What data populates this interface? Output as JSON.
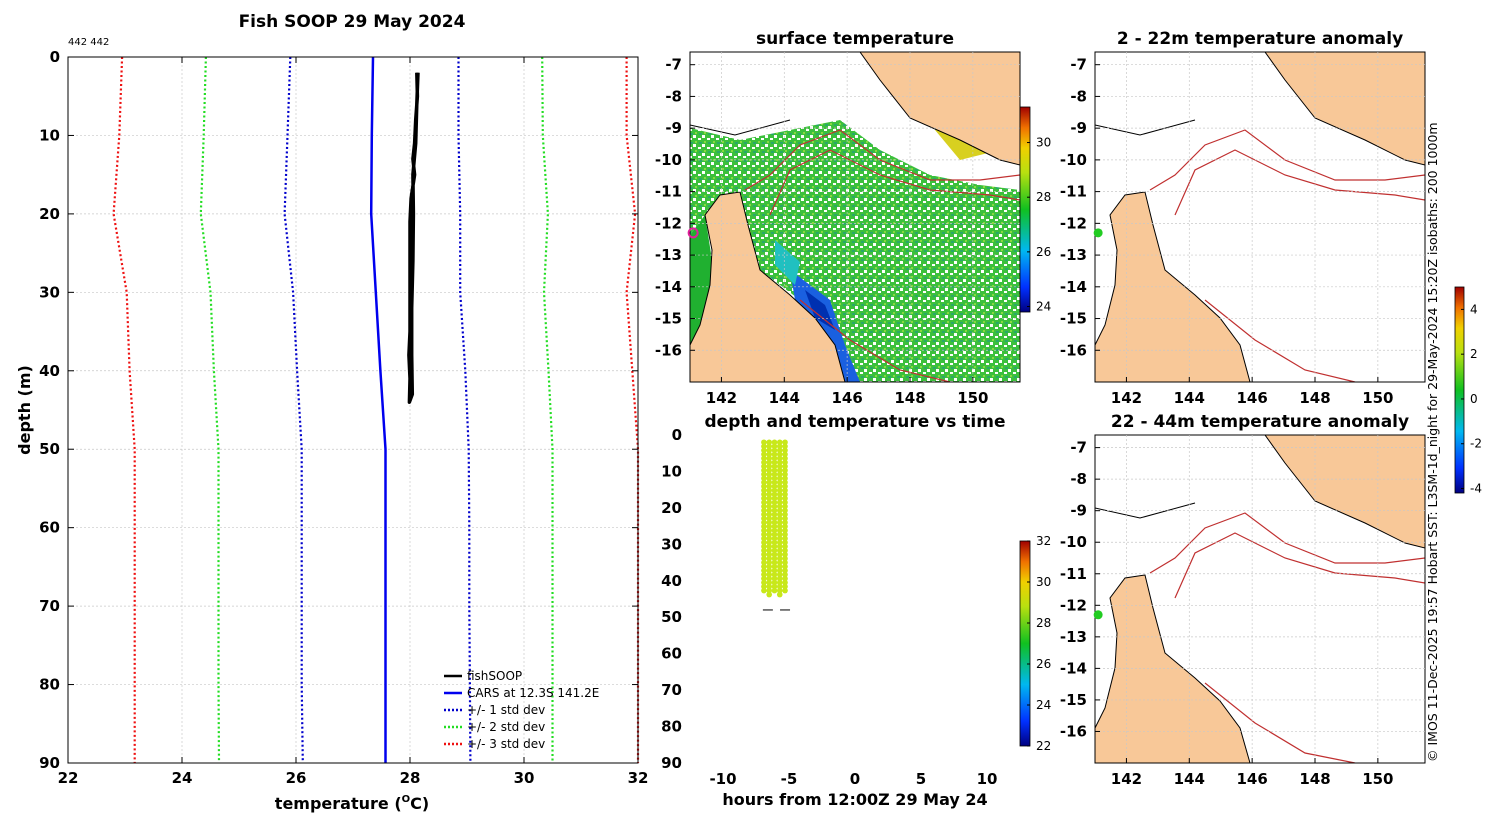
{
  "page_title": "Fish SOOP 29 May 2024",
  "counts_label": "442 442",
  "credit": "© IMOS 11-Dec-2025 19:57 Hobart SST: L3SM-1d_night for 29-May-2024 15:20Z isobaths: 200  1000m",
  "colors": {
    "fishsoop": "#000000",
    "cars": "#0000ee",
    "std1": "#0000cc",
    "std2": "#22dd22",
    "std3": "#ee1111",
    "land": "#f8c898",
    "coast": "#000000",
    "isobath": "#c03030",
    "grid": "#c8c8c8",
    "ship": "#e0209a",
    "station": "#22cc22"
  },
  "chart_data": [
    {
      "type": "line",
      "id": "profile",
      "title": "Fish SOOP 29 May 2024",
      "xlabel": "temperature (",
      "xlabel_unit": "O",
      "xlabel_end": "C)",
      "ylabel": "depth (m)",
      "xlim": [
        22,
        32
      ],
      "ylim": [
        0,
        90
      ],
      "xticks": [
        22,
        24,
        26,
        28,
        30,
        32
      ],
      "yticks": [
        0,
        10,
        20,
        30,
        40,
        50,
        60,
        70,
        80,
        90
      ],
      "legend_position": "bottom-right",
      "legend": [
        "fishSOOP",
        "CARS at 12.3S 141.2E",
        "+/- 1 std dev",
        "+/- 2 std dev",
        "+/- 3 std dev"
      ],
      "series": [
        {
          "name": "fishSOOP",
          "style": "solid-thick",
          "points": [
            [
              28.12,
              2
            ],
            [
              28.13,
              5
            ],
            [
              28.1,
              8
            ],
            [
              28.08,
              11
            ],
            [
              28.05,
              13
            ],
            [
              28.08,
              15
            ],
            [
              28.02,
              18
            ],
            [
              28.0,
              21
            ],
            [
              28.0,
              25
            ],
            [
              28.0,
              30
            ],
            [
              28.0,
              35
            ],
            [
              27.98,
              38
            ],
            [
              28.0,
              41
            ],
            [
              27.99,
              44
            ],
            [
              28.04,
              43
            ],
            [
              28.03,
              38
            ],
            [
              28.03,
              32
            ],
            [
              28.05,
              26
            ],
            [
              28.06,
              20
            ],
            [
              28.05,
              15
            ],
            [
              28.1,
              11
            ],
            [
              28.12,
              6
            ],
            [
              28.14,
              2
            ]
          ]
        },
        {
          "name": "CARS at 12.3S 141.2E",
          "style": "solid",
          "points": [
            [
              27.35,
              0
            ],
            [
              27.33,
              10
            ],
            [
              27.32,
              20
            ],
            [
              27.4,
              30
            ],
            [
              27.48,
              40
            ],
            [
              27.57,
              50
            ],
            [
              27.57,
              60
            ],
            [
              27.57,
              70
            ],
            [
              27.57,
              80
            ],
            [
              27.57,
              90
            ]
          ]
        },
        {
          "name": "-1 std dev",
          "style": "dotted",
          "points": [
            [
              25.9,
              0
            ],
            [
              25.85,
              10
            ],
            [
              25.8,
              20
            ],
            [
              25.95,
              30
            ],
            [
              26.02,
              40
            ],
            [
              26.1,
              50
            ],
            [
              26.1,
              60
            ],
            [
              26.1,
              70
            ],
            [
              26.1,
              80
            ],
            [
              26.12,
              90
            ]
          ]
        },
        {
          "name": "+1 std dev",
          "style": "dotted",
          "points": [
            [
              28.85,
              0
            ],
            [
              28.85,
              10
            ],
            [
              28.88,
              20
            ],
            [
              28.88,
              30
            ],
            [
              28.97,
              40
            ],
            [
              29.03,
              50
            ],
            [
              29.04,
              60
            ],
            [
              29.04,
              70
            ],
            [
              29.05,
              80
            ],
            [
              29.06,
              90
            ]
          ]
        },
        {
          "name": "-2 std dev",
          "style": "dotted",
          "points": [
            [
              24.42,
              0
            ],
            [
              24.38,
              10
            ],
            [
              24.33,
              20
            ],
            [
              24.5,
              30
            ],
            [
              24.56,
              40
            ],
            [
              24.64,
              50
            ],
            [
              24.64,
              60
            ],
            [
              24.64,
              70
            ],
            [
              24.64,
              80
            ],
            [
              24.65,
              90
            ]
          ]
        },
        {
          "name": "+2 std dev",
          "style": "dotted",
          "points": [
            [
              30.32,
              0
            ],
            [
              30.33,
              10
            ],
            [
              30.42,
              20
            ],
            [
              30.35,
              30
            ],
            [
              30.43,
              40
            ],
            [
              30.5,
              50
            ],
            [
              30.5,
              60
            ],
            [
              30.5,
              70
            ],
            [
              30.5,
              80
            ],
            [
              30.5,
              90
            ]
          ]
        },
        {
          "name": "-3 std dev",
          "style": "dotted",
          "points": [
            [
              22.95,
              0
            ],
            [
              22.9,
              10
            ],
            [
              22.8,
              20
            ],
            [
              23.03,
              30
            ],
            [
              23.08,
              40
            ],
            [
              23.17,
              50
            ],
            [
              23.17,
              60
            ],
            [
              23.17,
              70
            ],
            [
              23.17,
              80
            ],
            [
              23.17,
              90
            ]
          ]
        },
        {
          "name": "+3 std dev",
          "style": "dotted",
          "points": [
            [
              31.8,
              0
            ],
            [
              31.8,
              10
            ],
            [
              31.95,
              20
            ],
            [
              31.8,
              30
            ],
            [
              31.9,
              40
            ],
            [
              32.0,
              50
            ],
            [
              32.0,
              60
            ],
            [
              32.0,
              70
            ],
            [
              32.0,
              80
            ],
            [
              32.0,
              90
            ]
          ]
        }
      ]
    },
    {
      "type": "heatmap",
      "id": "sst_map",
      "title": "surface temperature",
      "xlim": [
        141.0,
        151.5
      ],
      "ylim": [
        -17.0,
        -6.6
      ],
      "xticks": [
        142,
        144,
        146,
        148,
        150
      ],
      "yticks": [
        -7,
        -8,
        -9,
        -10,
        -11,
        -12,
        -13,
        -14,
        -15,
        -16
      ],
      "colorbar": {
        "min": 23.8,
        "max": 31.3,
        "ticks": [
          24,
          26,
          28,
          30
        ]
      },
      "ship_position": {
        "lon": 141.1,
        "lat": -12.3
      }
    },
    {
      "type": "scatter",
      "id": "depth_time",
      "title": "depth and temperature vs time",
      "xlabel": "hours from 12:00Z 29 May 24",
      "xlim": [
        -12.5,
        12.5
      ],
      "ylim": [
        0,
        90
      ],
      "xticks": [
        -10,
        -5,
        0,
        5,
        10
      ],
      "yticks": [
        0,
        10,
        20,
        30,
        40,
        50,
        60,
        70,
        80,
        90
      ],
      "casts": [
        {
          "hour": -6.9,
          "top": 2,
          "bottom": 43
        },
        {
          "hour": -6.5,
          "top": 2,
          "bottom": 44
        },
        {
          "hour": -6.1,
          "top": 2,
          "bottom": 43
        },
        {
          "hour": -5.7,
          "top": 2,
          "bottom": 44
        },
        {
          "hour": -5.3,
          "top": 2,
          "bottom": 43
        }
      ],
      "bottom_marks": [
        {
          "hour": -6.6,
          "depth": 48
        },
        {
          "hour": -5.3,
          "depth": 48
        }
      ],
      "point_temperature": 28.1,
      "colorbar": {
        "min": 22,
        "max": 32,
        "ticks": [
          22,
          24,
          26,
          28,
          30,
          32
        ]
      }
    },
    {
      "type": "heatmap",
      "id": "anom_shallow",
      "title": "2 - 22m temperature anomaly",
      "xlim": [
        141.0,
        151.5
      ],
      "ylim": [
        -17.0,
        -6.6
      ],
      "xticks": [
        142,
        144,
        146,
        148,
        150
      ],
      "yticks": [
        -7,
        -8,
        -9,
        -10,
        -11,
        -12,
        -13,
        -14,
        -15,
        -16
      ],
      "station": {
        "lon": 141.1,
        "lat": -12.3,
        "anomaly": 0.2
      }
    },
    {
      "type": "heatmap",
      "id": "anom_deep",
      "title": "22 - 44m temperature anomaly",
      "xlim": [
        141.0,
        151.5
      ],
      "ylim": [
        -17.0,
        -6.6
      ],
      "xticks": [
        142,
        144,
        146,
        148,
        150
      ],
      "yticks": [
        -7,
        -8,
        -9,
        -10,
        -11,
        -12,
        -13,
        -14,
        -15,
        -16
      ],
      "station": {
        "lon": 141.1,
        "lat": -12.3,
        "anomaly": 0.2
      },
      "colorbar": {
        "min": -4.2,
        "max": 5.0,
        "ticks": [
          -4,
          -2,
          0,
          2,
          4
        ]
      }
    }
  ]
}
